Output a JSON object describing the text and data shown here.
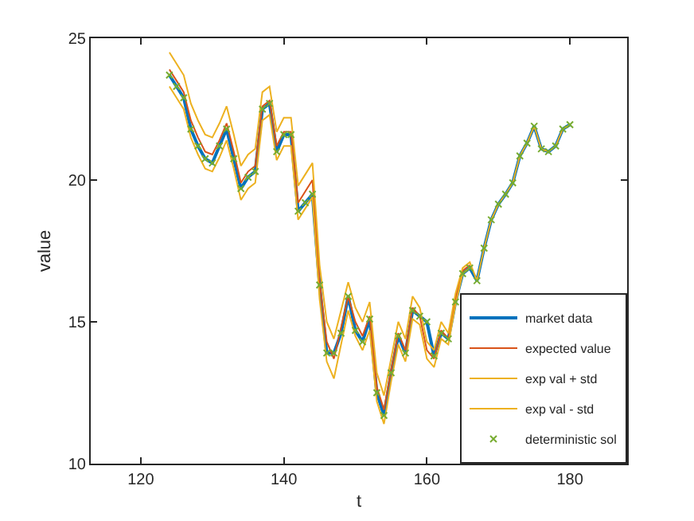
{
  "chart_data": {
    "type": "line",
    "xlabel": "t",
    "ylabel": "value",
    "x": [
      124,
      125,
      126,
      127,
      128,
      129,
      130,
      131,
      132,
      133,
      134,
      135,
      136,
      137,
      138,
      139,
      140,
      141,
      142,
      143,
      144,
      145,
      146,
      147,
      148,
      149,
      150,
      151,
      152,
      153,
      154,
      155,
      156,
      157,
      158,
      159,
      160,
      161,
      162,
      163,
      164,
      165,
      166,
      167,
      168,
      169,
      170,
      171,
      172,
      173,
      174,
      175,
      176,
      177,
      178,
      179,
      180
    ],
    "xlim": [
      113,
      188
    ],
    "xticks": [
      120,
      140,
      160,
      180
    ],
    "ylim": [
      10,
      25
    ],
    "yticks": [
      10,
      15,
      20,
      25
    ],
    "grid": false,
    "legend": "bottom right",
    "series": [
      {
        "name": "market data",
        "color": "#0072bd",
        "values": [
          23.7,
          23.3,
          22.9,
          21.8,
          21.2,
          20.75,
          20.6,
          21.2,
          21.8,
          20.75,
          19.7,
          20.1,
          20.3,
          22.5,
          22.7,
          21.0,
          21.6,
          21.6,
          18.9,
          19.2,
          19.5,
          16.3,
          13.9,
          13.9,
          14.6,
          15.9,
          14.7,
          14.3,
          15.1,
          12.5,
          11.7,
          13.2,
          14.5,
          13.9,
          15.4,
          15.2,
          15.0,
          13.8,
          14.6,
          14.4,
          15.7,
          16.7,
          16.9,
          16.45,
          17.6,
          18.6,
          19.15,
          19.5,
          19.9,
          20.85,
          21.3,
          21.9,
          21.1,
          21.0,
          21.2,
          21.8,
          21.95
        ]
      },
      {
        "name": "expected value",
        "color": "#d95319",
        "values": [
          23.9,
          23.5,
          23.1,
          22.1,
          21.5,
          21.0,
          20.9,
          21.4,
          22.0,
          21.0,
          19.9,
          20.3,
          20.5,
          22.6,
          22.8,
          21.2,
          21.7,
          21.7,
          19.2,
          19.6,
          20.0,
          16.4,
          14.3,
          13.7,
          14.8,
          15.9,
          15.0,
          14.5,
          15.2,
          12.7,
          11.9,
          13.3,
          14.6,
          14.0,
          15.5,
          15.2,
          14.0,
          13.7,
          14.7,
          14.4,
          15.8,
          16.8,
          17.0,
          null,
          null,
          null,
          null,
          null,
          null,
          null,
          null,
          null,
          null,
          null,
          null,
          null,
          null
        ]
      },
      {
        "name": "exp val + std",
        "color": "#edb120",
        "values": [
          24.5,
          24.1,
          23.7,
          22.7,
          22.1,
          21.6,
          21.5,
          22.0,
          22.6,
          21.6,
          20.5,
          20.9,
          21.1,
          23.1,
          23.3,
          21.7,
          22.2,
          22.2,
          19.8,
          20.2,
          20.6,
          17.0,
          15.0,
          14.4,
          15.4,
          16.4,
          15.5,
          15.0,
          15.7,
          13.2,
          12.4,
          13.7,
          15.0,
          14.4,
          15.9,
          15.5,
          14.3,
          14.0,
          15.0,
          14.6,
          16.0,
          16.9,
          17.1,
          16.45,
          17.6,
          18.6,
          19.15,
          19.5,
          19.9,
          20.85,
          21.3,
          21.9,
          21.1,
          21.0,
          21.2,
          21.8,
          21.95
        ]
      },
      {
        "name": "exp val - std",
        "color": "#edb120",
        "values": [
          23.3,
          22.9,
          22.5,
          21.5,
          20.9,
          20.4,
          20.3,
          20.8,
          21.4,
          20.4,
          19.3,
          19.7,
          19.9,
          22.1,
          22.3,
          20.7,
          21.2,
          21.2,
          18.6,
          19.0,
          19.4,
          15.8,
          13.6,
          13.0,
          14.2,
          15.4,
          14.5,
          14.0,
          14.7,
          12.2,
          11.4,
          12.9,
          14.2,
          13.6,
          15.1,
          14.9,
          13.7,
          13.4,
          14.4,
          14.2,
          15.6,
          16.7,
          16.9,
          null,
          null,
          null,
          null,
          null,
          null,
          null,
          null,
          null,
          null,
          null,
          null,
          null,
          null
        ]
      },
      {
        "name": "deterministic sol",
        "type": "scatter",
        "marker": "cross",
        "color": "#77ac30",
        "values": [
          23.7,
          23.3,
          22.9,
          21.8,
          21.2,
          20.75,
          20.6,
          21.2,
          21.8,
          20.75,
          19.7,
          20.1,
          20.3,
          22.5,
          22.7,
          21.0,
          21.6,
          21.6,
          18.9,
          19.2,
          19.5,
          16.3,
          13.9,
          13.9,
          14.6,
          15.9,
          14.7,
          14.3,
          15.1,
          12.5,
          11.7,
          13.2,
          14.5,
          13.9,
          15.4,
          15.2,
          15.0,
          13.8,
          14.6,
          14.4,
          15.7,
          16.7,
          16.9,
          16.45,
          17.6,
          18.6,
          19.15,
          19.5,
          19.9,
          20.85,
          21.3,
          21.9,
          21.1,
          21.0,
          21.2,
          21.8,
          21.95
        ]
      }
    ]
  }
}
